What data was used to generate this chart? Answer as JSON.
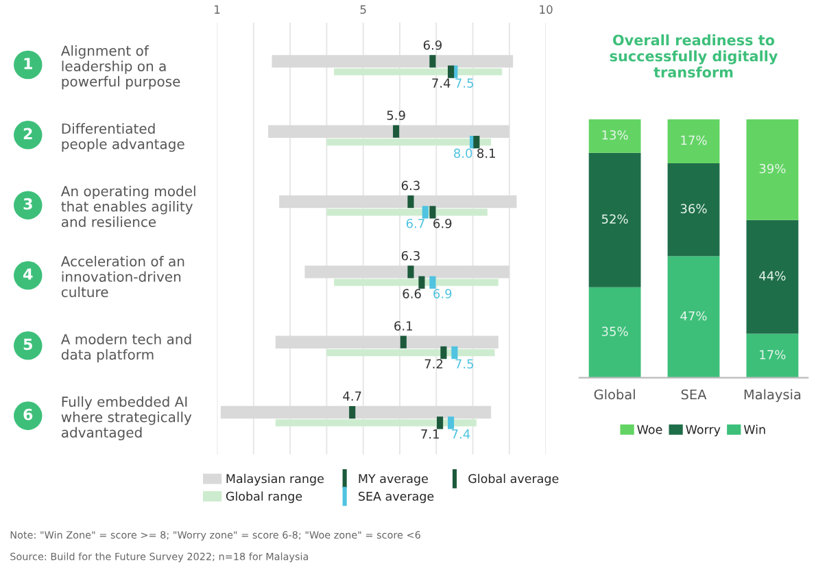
{
  "chart_data": [
    {
      "type": "bar",
      "orientation": "horizontal",
      "categories": [
        "Alignment of\nleadership on a\npowerful purpose",
        "Differentiated\npeople advantage",
        "An operating model\nthat enables agility\nand resilience",
        "Acceleration of an\ninnovation-driven\nculture",
        "A modern tech and\ndata platform",
        "Fully embedded AI\nwhere strategically\nadvantaged"
      ],
      "series": [
        {
          "name": "Malaysian range",
          "type": "bar",
          "color": "#d9d9d9",
          "base": [
            2.5,
            2.4,
            2.7,
            3.4,
            2.6,
            1.1
          ],
          "values": [
            6.6,
            6.6,
            6.5,
            5.6,
            6.1,
            7.4
          ]
        },
        {
          "name": "Global range",
          "type": "bar",
          "color": "#cdeccf",
          "base": [
            4.2,
            4.0,
            4.0,
            4.2,
            4.0,
            2.6
          ],
          "values": [
            4.6,
            4.5,
            4.4,
            4.5,
            4.6,
            5.5
          ]
        },
        {
          "name": "MY average",
          "type": "scatter",
          "color": "#1d5a3c",
          "values": [
            6.9,
            5.9,
            6.3,
            6.3,
            6.1,
            4.7
          ],
          "value_labels": [
            "6.9",
            "5.9",
            "6.3",
            "6.3",
            "6.1",
            "4.7"
          ]
        },
        {
          "name": "SEA average",
          "type": "scatter",
          "color": "#4fc3e0",
          "values": [
            7.5,
            8.0,
            6.7,
            6.9,
            7.5,
            7.4
          ],
          "value_labels": [
            "7.5",
            "8.0",
            "6.7",
            "6.9",
            "7.5",
            "7.4"
          ]
        },
        {
          "name": "Global average",
          "type": "scatter",
          "color": "#1d5a3c",
          "values": [
            7.4,
            8.1,
            6.9,
            6.6,
            7.2,
            7.1
          ],
          "value_labels": [
            "7.4",
            "8.1",
            "6.9",
            "6.6",
            "7.2",
            "7.1"
          ]
        }
      ],
      "xlim": [
        1,
        10
      ],
      "xticks": [
        1,
        {
          "value": 2,
          "label": null
        },
        {
          "value": 3,
          "label": null
        },
        {
          "value": 4,
          "label": null
        },
        5,
        {
          "value": 6,
          "label": null
        },
        {
          "value": 7,
          "label": null
        },
        {
          "value": 8,
          "label": null
        },
        {
          "value": 9,
          "label": null
        },
        10
      ],
      "grid": "x",
      "legend": "bottom",
      "marker": "square",
      "annotations": [
        "1",
        "2",
        "3",
        "4",
        "5",
        "6",
        "Note: \"Win Zone\" = score >= 8; \"Worry zone\" = score 6-8; \"Woe zone\" = score <6",
        "Source: Build for the Future Survey 2022; n=18 for Malaysia"
      ]
    },
    {
      "type": "bar",
      "stacked": true,
      "title": "Overall readiness to\nsuccessfully digitally\ntransform",
      "categories": [
        "Global",
        "SEA",
        "Malaysia"
      ],
      "series": [
        {
          "name": "Win",
          "color": "#3dbf7a",
          "values": [
            35,
            47,
            17
          ],
          "value_labels": [
            "35%",
            "47%",
            "17%"
          ]
        },
        {
          "name": "Worry",
          "color": "#1f6e4a",
          "values": [
            52,
            36,
            44
          ],
          "value_labels": [
            "52%",
            "36%",
            "44%"
          ]
        },
        {
          "name": "Woe",
          "color": "#63d463",
          "values": [
            13,
            17,
            39
          ],
          "value_labels": [
            "13%",
            "17%",
            "39%"
          ]
        }
      ],
      "legend": "bottom"
    }
  ]
}
